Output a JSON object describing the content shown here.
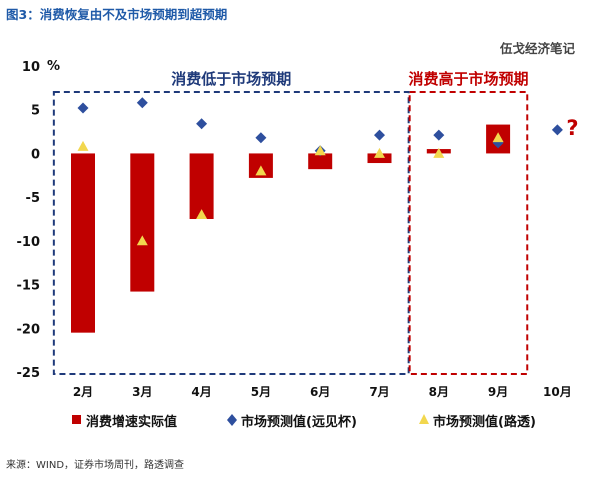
{
  "figure": {
    "title": "图3：消费恢复由不及市场预期到超预期",
    "watermark": "伍戈经济笔记",
    "source": "来源：WIND，证券市场周刊，路透调查"
  },
  "chart_data": {
    "type": "bar",
    "ylabel": "%",
    "ylim": [
      -25,
      10
    ],
    "yticks": [
      10,
      5,
      0,
      -5,
      -10,
      -15,
      -20,
      -25
    ],
    "grid": false,
    "legend_position": "bottom",
    "categories": [
      "2月",
      "3月",
      "4月",
      "5月",
      "6月",
      "7月",
      "8月",
      "9月",
      "10月"
    ],
    "series": [
      {
        "name": "消费增速实际值",
        "type": "bar",
        "color": "#c00000",
        "values": [
          -20.5,
          -15.8,
          -7.5,
          -2.8,
          -1.8,
          -1.1,
          0.5,
          3.3,
          null
        ]
      },
      {
        "name": "市场预测值(远见杯)",
        "type": "scatter",
        "marker": "diamond",
        "color": "#2e4f9e",
        "values": [
          5.2,
          5.8,
          3.4,
          1.8,
          0.3,
          2.1,
          2.1,
          1.2,
          2.7
        ]
      },
      {
        "name": "市场预测值(路透)",
        "type": "scatter",
        "marker": "triangle",
        "color": "#f2d74e",
        "values": [
          0.8,
          -10.0,
          -7.0,
          -2.0,
          0.3,
          0.0,
          0.0,
          1.8,
          null
        ]
      }
    ],
    "regions": [
      {
        "label": "消费低于市场预期",
        "from": "2月",
        "to": "7月",
        "color": "#1f3a7a"
      },
      {
        "label": "消费高于市场预期",
        "from": "8月",
        "to": "9月",
        "color": "#c00000"
      }
    ],
    "annotations": [
      {
        "text": "?",
        "category": "10月",
        "color": "#c00000"
      }
    ]
  }
}
